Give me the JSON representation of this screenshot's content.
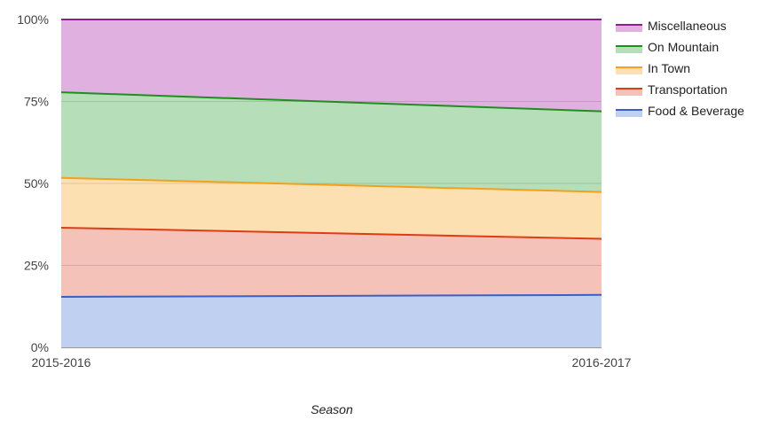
{
  "chart_data": {
    "type": "area",
    "stacked": "percent",
    "x": [
      "2015-2016",
      "2016-2017"
    ],
    "xlabel": "Season",
    "ylabel": "",
    "ylim": [
      0,
      100
    ],
    "y_ticks": [
      "0%",
      "25%",
      "50%",
      "75%",
      "100%"
    ],
    "grid": true,
    "legend_position": "right",
    "series": [
      {
        "name": "Food & Beverage",
        "values": [
          15.4,
          16.0
        ],
        "line_color": "#3c5fc2",
        "fill_color": "#c0d0f1"
      },
      {
        "name": "Transportation",
        "values": [
          21.1,
          17.1
        ],
        "line_color": "#de3c15",
        "fill_color": "#f4c2b9"
      },
      {
        "name": "In Town",
        "values": [
          15.2,
          14.3
        ],
        "line_color": "#f3a11a",
        "fill_color": "#fde0b1"
      },
      {
        "name": "On Mountain",
        "values": [
          26.1,
          24.6
        ],
        "line_color": "#1e8f1e",
        "fill_color": "#b6dfb9"
      },
      {
        "name": "Miscellaneous",
        "values": [
          22.2,
          28.0
        ],
        "line_color": "#8d1f8d",
        "fill_color": "#e0b0e0"
      }
    ]
  }
}
